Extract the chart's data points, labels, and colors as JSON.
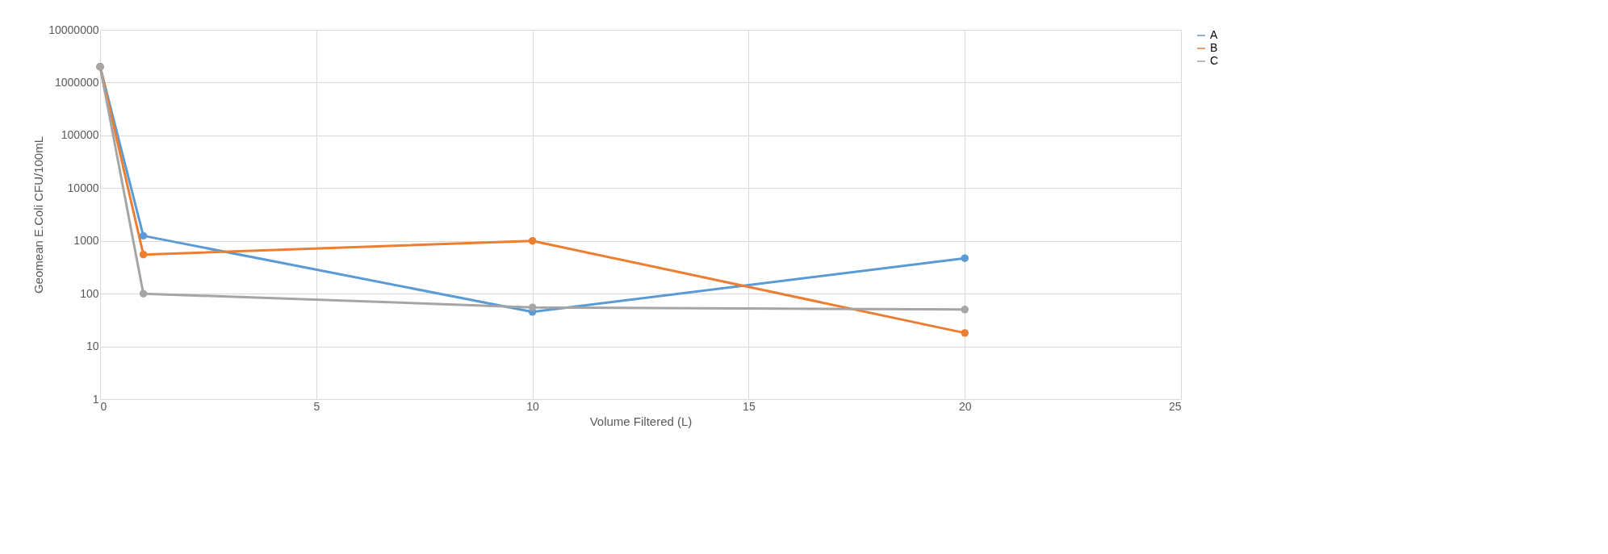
{
  "chart_data": {
    "type": "line",
    "xlabel": "Volume Filtered (L)",
    "ylabel": "Geomean E.Coli CFU/100mL",
    "x": [
      0,
      1,
      10,
      20
    ],
    "series": [
      {
        "name": "A",
        "color": "#5b9bd5",
        "values": [
          2000000,
          1250,
          45,
          470
        ]
      },
      {
        "name": "B",
        "color": "#ed7d31",
        "values": [
          2000000,
          550,
          1000,
          18
        ]
      },
      {
        "name": "C",
        "color": "#a5a5a5",
        "values": [
          2000000,
          100,
          55,
          50
        ]
      }
    ],
    "xlim": [
      0,
      25
    ],
    "xticks": [
      0,
      5,
      10,
      15,
      20,
      25
    ],
    "ylim": [
      1,
      10000000
    ],
    "yticks": [
      1,
      10,
      100,
      1000,
      10000,
      100000,
      1000000,
      10000000
    ],
    "log": "y",
    "grid": true,
    "legend": "right",
    "marker": "circle",
    "line_style": "solid"
  }
}
